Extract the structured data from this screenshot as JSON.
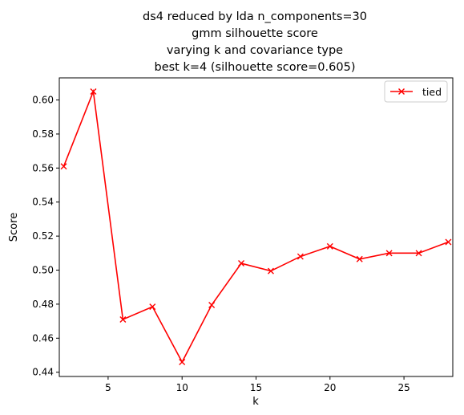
{
  "chart_data": {
    "type": "line",
    "title_lines": [
      "ds4 reduced by lda n_components=30",
      "gmm silhouette score",
      "varying k and covariance type",
      "best k=4 (silhouette score=0.605)"
    ],
    "xlabel": "k",
    "ylabel": "Score",
    "xlim": [
      1.7,
      28.3
    ],
    "ylim": [
      0.4375,
      0.613
    ],
    "xticks": [
      5,
      10,
      15,
      20,
      25
    ],
    "xtick_labels": [
      "5",
      "10",
      "15",
      "20",
      "25"
    ],
    "yticks": [
      0.44,
      0.46,
      0.48,
      0.5,
      0.52,
      0.54,
      0.56,
      0.58,
      0.6
    ],
    "ytick_labels": [
      "0.44",
      "0.46",
      "0.48",
      "0.50",
      "0.52",
      "0.54",
      "0.56",
      "0.58",
      "0.60"
    ],
    "legend_position": "top-right",
    "grid": false,
    "series": [
      {
        "name": "tied",
        "color": "#ff0000",
        "marker": "x",
        "x": [
          2,
          4,
          6,
          8,
          10,
          12,
          14,
          16,
          18,
          20,
          22,
          24,
          26,
          28
        ],
        "y": [
          0.561,
          0.605,
          0.471,
          0.4785,
          0.446,
          0.4795,
          0.504,
          0.4995,
          0.508,
          0.514,
          0.5065,
          0.51,
          0.51,
          0.5165
        ]
      }
    ]
  }
}
